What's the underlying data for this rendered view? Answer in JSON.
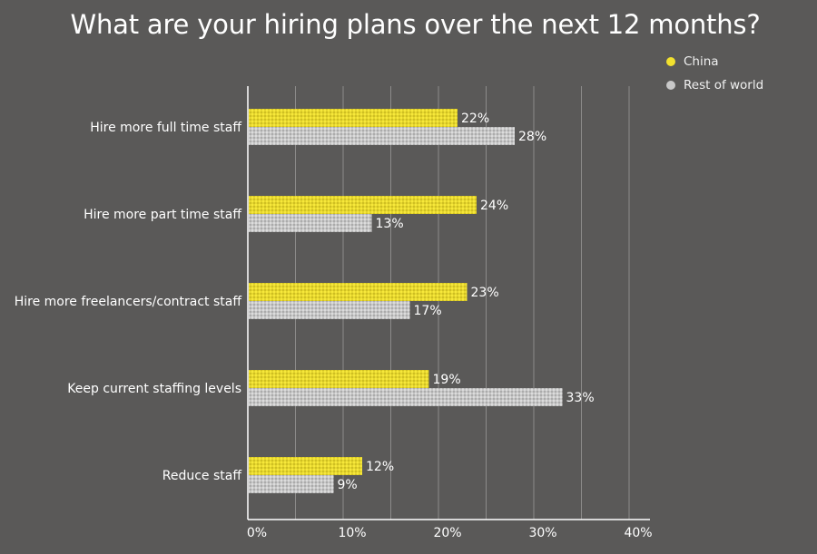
{
  "title": "What are your hiring plans over the next 12 months?",
  "legend": [
    {
      "name": "China",
      "color": "#f2e12e"
    },
    {
      "name": "Rest of world",
      "color": "#c8c8c8"
    }
  ],
  "chart_data": {
    "type": "bar",
    "orientation": "horizontal",
    "title": "What are your hiring plans over the next 12 months?",
    "categories": [
      "Hire more full time staff",
      "Hire more part time staff",
      "Hire more freelancers/contract staff",
      "Keep current staffing levels",
      "Reduce staff"
    ],
    "series": [
      {
        "name": "China",
        "values": [
          22,
          24,
          23,
          19,
          12
        ],
        "labels": [
          "22%",
          "24%",
          "23%",
          "19%",
          "12%"
        ],
        "color": "#f2e12e"
      },
      {
        "name": "Rest of world",
        "values": [
          28,
          13,
          17,
          33,
          9
        ],
        "labels": [
          "28%",
          "13%",
          "17%",
          "33%",
          "9%"
        ],
        "color": "#c8c8c8"
      }
    ],
    "xlim": [
      0,
      40
    ],
    "xticks": [
      0,
      10,
      20,
      30,
      40
    ],
    "xtick_labels": [
      "0%",
      "10%",
      "20%",
      "30%",
      "40%"
    ],
    "grid": true,
    "legend_position": "top-right",
    "background": "#5a5958"
  }
}
